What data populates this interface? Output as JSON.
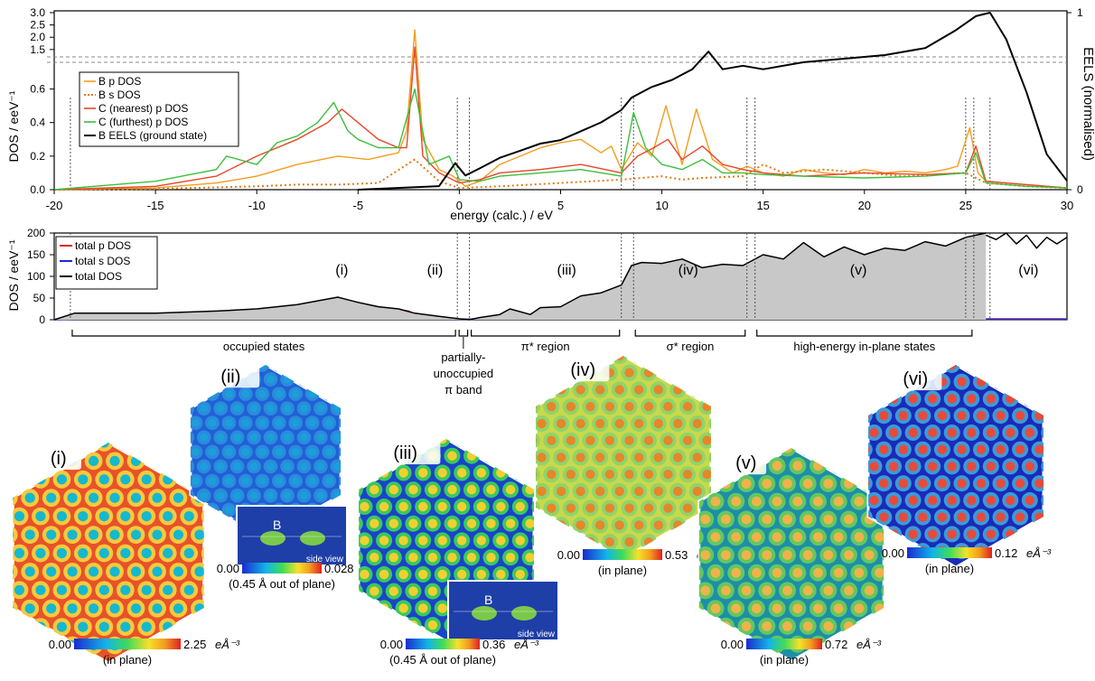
{
  "chart_data": [
    {
      "type": "line",
      "xlabel": "energy (calc.) / eV",
      "ylabel": "DOS / eeV⁻¹",
      "y2label": "EELS (normalised)",
      "xlim": [
        -20,
        30
      ],
      "ylim_lower": [
        0,
        0.7
      ],
      "ylim_upper": [
        1.2,
        3.0
      ],
      "y2lim": [
        0,
        1
      ],
      "x_ticks": [
        "-20",
        "-15",
        "-10",
        "-5",
        "0",
        "5",
        "10",
        "15",
        "20",
        "25",
        "30"
      ],
      "y_ticks_lower": [
        "0.0",
        "0.2",
        "0.4",
        "0.6"
      ],
      "y_ticks_upper": [
        "1.5",
        "2.0",
        "2.5",
        "3.0"
      ],
      "y2_ticks": [
        "0",
        "1"
      ],
      "legend_position": "top-left",
      "vlines": [
        -19.2,
        -0.1,
        0.5,
        8.0,
        8.6,
        14.2,
        14.6,
        25.0,
        25.4,
        26.2
      ],
      "series": [
        {
          "name": "B p DOS",
          "color": "#f39c1f",
          "style": "solid",
          "x": [
            -20,
            -15,
            -12,
            -10,
            -8,
            -6,
            -4.5,
            -3,
            -2.6,
            -2.2,
            -1.8,
            -1,
            -0.3,
            0.3,
            1,
            2,
            3,
            4,
            5,
            6,
            7,
            7.5,
            8,
            8.8,
            9.5,
            10.2,
            11,
            11.7,
            12.5,
            13.5,
            14.2,
            15,
            16,
            17,
            18,
            19,
            20,
            21,
            22,
            23,
            24,
            24.6,
            25.2,
            25.6,
            26,
            27,
            28,
            29,
            30
          ],
          "y": [
            0,
            0.01,
            0.04,
            0.08,
            0.15,
            0.2,
            0.18,
            0.22,
            0.35,
            2.3,
            0.3,
            0.12,
            0.08,
            0.02,
            0.05,
            0.15,
            0.2,
            0.25,
            0.28,
            0.3,
            0.22,
            0.26,
            0.12,
            0.28,
            0.2,
            0.5,
            0.15,
            0.48,
            0.18,
            0.1,
            0.14,
            0.1,
            0.08,
            0.12,
            0.1,
            0.09,
            0.12,
            0.1,
            0.11,
            0.1,
            0.12,
            0.14,
            0.37,
            0.1,
            0.05,
            0.04,
            0.03,
            0.02,
            0.01
          ]
        },
        {
          "name": "B s DOS",
          "color": "#e07b10",
          "style": "dotted",
          "x": [
            -20,
            -15,
            -10,
            -8,
            -6,
            -4,
            -2.2,
            -1,
            0,
            2,
            5,
            8,
            9,
            10,
            11,
            12,
            14,
            15,
            16,
            18,
            20,
            22,
            25,
            26,
            28,
            30
          ],
          "y": [
            0,
            0.005,
            0.02,
            0.03,
            0.03,
            0.04,
            0.18,
            0.05,
            0.01,
            0.02,
            0.04,
            0.06,
            0.07,
            0.08,
            0.06,
            0.07,
            0.08,
            0.15,
            0.1,
            0.12,
            0.1,
            0.08,
            0.1,
            0.04,
            0.02,
            0.01
          ]
        },
        {
          "name": "C (nearest) p DOS",
          "color": "#e8462a",
          "style": "solid",
          "x": [
            -20,
            -15,
            -12,
            -10,
            -8,
            -6.5,
            -5.8,
            -5,
            -4,
            -3,
            -2.6,
            -2.2,
            -1.8,
            -1,
            0,
            1,
            2,
            4,
            6,
            8,
            8.8,
            9.6,
            10.3,
            11,
            12,
            13,
            14,
            15,
            17,
            20,
            23,
            25,
            25.5,
            26,
            28,
            30
          ],
          "y": [
            0,
            0.02,
            0.08,
            0.2,
            0.3,
            0.4,
            0.48,
            0.4,
            0.3,
            0.25,
            0.25,
            1.6,
            0.2,
            0.1,
            0.04,
            0.06,
            0.1,
            0.12,
            0.15,
            0.1,
            0.2,
            0.25,
            0.3,
            0.18,
            0.26,
            0.15,
            0.12,
            0.1,
            0.08,
            0.1,
            0.09,
            0.1,
            0.26,
            0.05,
            0.03,
            0.01
          ]
        },
        {
          "name": "C (furthest) p DOS",
          "color": "#3cbf3c",
          "style": "solid",
          "x": [
            -20,
            -15,
            -12,
            -11.5,
            -10,
            -9,
            -8,
            -7,
            -6.2,
            -5.5,
            -5,
            -4,
            -3,
            -2.2,
            -1.5,
            -0.5,
            0,
            1,
            2,
            4,
            6,
            8,
            8.6,
            9.2,
            10,
            11,
            12,
            13,
            14,
            15,
            17,
            20,
            23,
            25,
            25.5,
            26,
            28,
            30
          ],
          "y": [
            0,
            0.05,
            0.12,
            0.2,
            0.15,
            0.28,
            0.32,
            0.4,
            0.52,
            0.35,
            0.3,
            0.25,
            0.25,
            0.6,
            0.15,
            0.2,
            0.06,
            0.05,
            0.08,
            0.1,
            0.12,
            0.08,
            0.46,
            0.25,
            0.15,
            0.12,
            0.18,
            0.1,
            0.1,
            0.09,
            0.08,
            0.07,
            0.08,
            0.1,
            0.22,
            0.04,
            0.02,
            0.01
          ]
        },
        {
          "name": "B EELS (ground state)",
          "color": "#000000",
          "style": "solid",
          "axis": "right",
          "x": [
            -5,
            -1,
            -0.2,
            0.3,
            1,
            2,
            3,
            4,
            5,
            6,
            7,
            8,
            8.5,
            9.5,
            10.5,
            11.5,
            12.3,
            13,
            14,
            15,
            17,
            19,
            21,
            23,
            24.5,
            25.5,
            26.2,
            27,
            28,
            29,
            30
          ],
          "y": [
            0,
            0.02,
            0.15,
            0.08,
            0.12,
            0.18,
            0.22,
            0.26,
            0.28,
            0.33,
            0.38,
            0.45,
            0.52,
            0.58,
            0.62,
            0.68,
            0.78,
            0.68,
            0.7,
            0.68,
            0.72,
            0.74,
            0.76,
            0.8,
            0.9,
            0.98,
            1.0,
            0.85,
            0.55,
            0.2,
            0.05
          ]
        }
      ]
    },
    {
      "type": "area",
      "xlabel": "",
      "ylabel": "DOS / eeV⁻¹",
      "xlim": [
        -20,
        30
      ],
      "ylim": [
        0,
        200
      ],
      "y_ticks": [
        "0",
        "50",
        "100",
        "150",
        "200"
      ],
      "legend_position": "top-left",
      "series": [
        {
          "name": "total p DOS",
          "color": "#e02020",
          "x": [
            -20,
            -18,
            -15,
            -12,
            -10,
            -8,
            -6,
            -5,
            -4,
            -2.5,
            -2,
            -1,
            0,
            0.5,
            1,
            2,
            3,
            4,
            5,
            6,
            7,
            8,
            8.4,
            9,
            10,
            12,
            14,
            16,
            18,
            20,
            22,
            24,
            25,
            25.5,
            26,
            28,
            30
          ],
          "y": [
            0,
            10,
            10,
            12,
            20,
            30,
            45,
            40,
            30,
            20,
            8,
            6,
            2,
            1,
            4,
            8,
            10,
            12,
            12,
            15,
            14,
            18,
            35,
            20,
            15,
            12,
            10,
            12,
            14,
            12,
            10,
            10,
            12,
            3,
            2,
            2,
            2
          ]
        },
        {
          "name": "total s DOS",
          "color": "#1a2bd0",
          "x": [
            -20,
            -18,
            -10,
            -5,
            -2,
            0,
            2,
            5,
            8,
            10,
            14,
            20,
            25,
            26,
            30
          ],
          "y": [
            0,
            3,
            3,
            3,
            2,
            1,
            2,
            3,
            5,
            7,
            5,
            3,
            3,
            1,
            1
          ]
        },
        {
          "name": "total DOS",
          "color": "#000000",
          "x": [
            -20,
            -19,
            -17,
            -15,
            -12,
            -10,
            -8,
            -6,
            -5,
            -4,
            -3,
            -2.2,
            -1,
            0,
            0.5,
            1,
            2,
            2.5,
            3.5,
            4,
            5,
            6,
            7,
            8,
            8.5,
            9,
            10,
            11,
            12,
            13,
            14,
            15,
            16,
            17,
            18,
            19,
            20,
            21,
            22,
            23,
            24,
            25,
            25.5,
            26
          ],
          "y": [
            0,
            15,
            15,
            15,
            20,
            25,
            35,
            52,
            40,
            30,
            25,
            15,
            8,
            2,
            0,
            5,
            12,
            25,
            12,
            28,
            30,
            55,
            62,
            80,
            125,
            132,
            130,
            140,
            120,
            128,
            125,
            150,
            140,
            178,
            145,
            168,
            150,
            165,
            160,
            180,
            170,
            190,
            195,
            200
          ]
        },
        {
          "name": "",
          "color": "#000000",
          "x": [
            26,
            26.5,
            27,
            27.5,
            28,
            28.5,
            29,
            29.5,
            30
          ],
          "y": [
            195,
            185,
            200,
            175,
            195,
            165,
            190,
            175,
            190
          ]
        }
      ],
      "region_labels": [
        {
          "label": "(i)",
          "x": -5.8
        },
        {
          "label": "(ii)",
          "x": -1.2
        },
        {
          "label": "(iii)",
          "x": 5.3
        },
        {
          "label": "(iv)",
          "x": 11.3
        },
        {
          "label": "(v)",
          "x": 19.7
        },
        {
          "label": "(vi)",
          "x": 28.1
        }
      ],
      "region_brackets": [
        {
          "label": "occupied states",
          "from": -19.2,
          "to": -0.1
        },
        {
          "label": "partially-unoccupied π band",
          "from": -0.1,
          "to": 0.5
        },
        {
          "label": "π* region",
          "from": 0.5,
          "to": 8.0
        },
        {
          "label": "σ* region",
          "from": 8.6,
          "to": 14.2
        },
        {
          "label": "high-energy in-plane states",
          "from": 14.6,
          "to": 25.4
        }
      ]
    }
  ],
  "density_maps": [
    {
      "label": "(i)",
      "min": "0.00",
      "max": "2.25",
      "unit": "eÅ⁻³",
      "note": "(in plane)",
      "palette": "orange",
      "inset": ""
    },
    {
      "label": "(ii)",
      "min": "0.00",
      "max": "0.028",
      "unit": "eÅ⁻³",
      "note": "(0.45 Å out of plane)",
      "palette": "blue",
      "inset": "B",
      "inset_caption": "side view"
    },
    {
      "label": "(iii)",
      "min": "0.00",
      "max": "0.36",
      "unit": "eÅ⁻³",
      "note": "(0.45 Å out of plane)",
      "palette": "green",
      "inset": "B",
      "inset_caption": "side view"
    },
    {
      "label": "(iv)",
      "min": "0.00",
      "max": "0.53",
      "unit": "eÅ⁻³",
      "note": "(in plane)",
      "palette": "yellow",
      "inset": ""
    },
    {
      "label": "(v)",
      "min": "0.00",
      "max": "0.72",
      "unit": "eÅ⁻³",
      "note": "(in plane)",
      "palette": "teal",
      "inset": ""
    },
    {
      "label": "(vi)",
      "min": "0.00",
      "max": "0.12",
      "unit": "eÅ⁻³",
      "note": "(in plane)",
      "palette": "darkblue",
      "inset": ""
    }
  ]
}
